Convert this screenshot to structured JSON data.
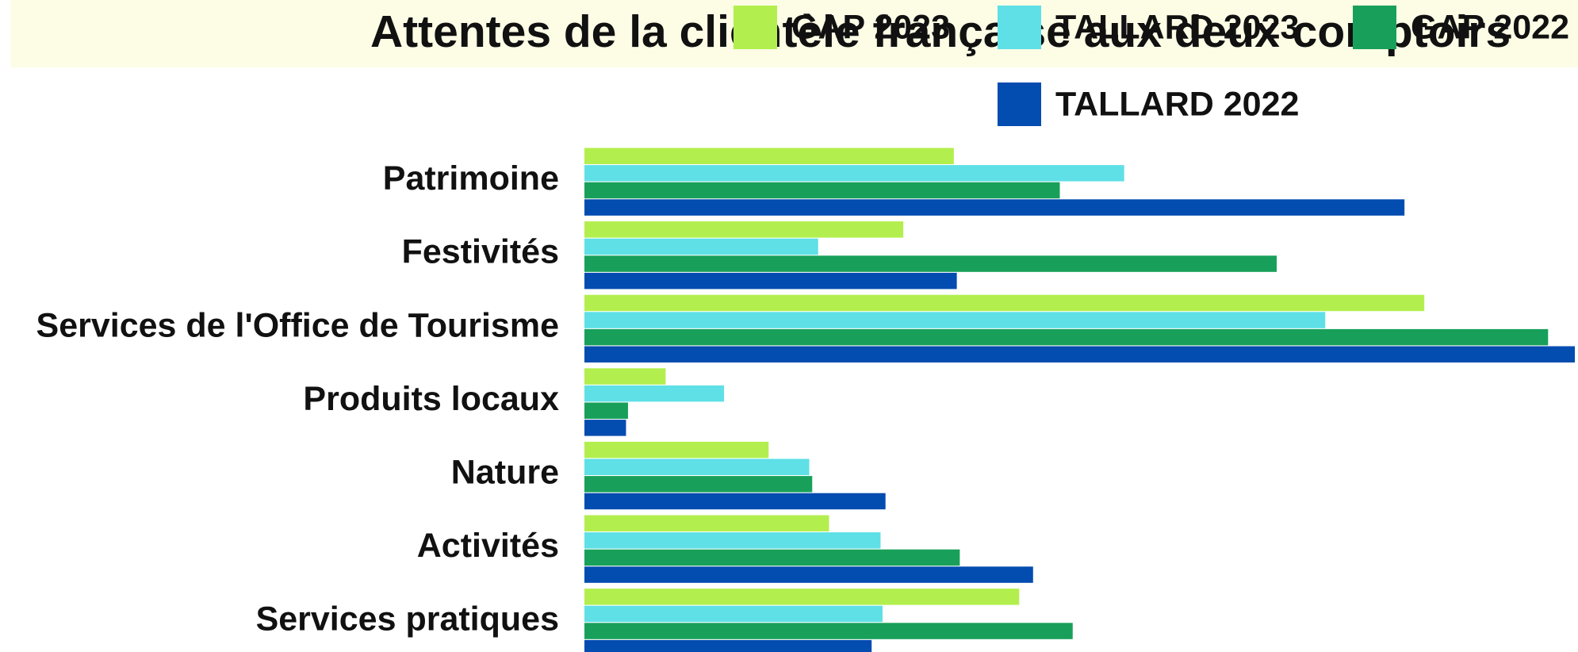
{
  "chart_data": {
    "type": "hbar",
    "title": "Attentes de la clientèle française aux deux comptoirs",
    "categories": [
      "Patrimoine",
      "Festivités",
      "Services de l'Office de Tourisme",
      "Produits locaux",
      "Nature",
      "Activités",
      "Services pratiques"
    ],
    "series": [
      {
        "name": "GAP 2023",
        "color": "#b2ef4e",
        "values": [
          37.3,
          32.2,
          84.8,
          8.2,
          18.6,
          24.7,
          43.9
        ]
      },
      {
        "name": "TALLARD 2023",
        "color": "#5ee0e6",
        "values": [
          54.5,
          23.6,
          74.8,
          14.1,
          22.7,
          29.9,
          30.1
        ]
      },
      {
        "name": "GAP 2022",
        "color": "#18a05a",
        "values": [
          48.0,
          69.9,
          97.3,
          4.4,
          23.0,
          37.9,
          49.3
        ]
      },
      {
        "name": "TALLARD 2022",
        "color": "#034cb0",
        "values": [
          82.8,
          37.6,
          100,
          4.2,
          30.4,
          45.3,
          29.0
        ]
      }
    ],
    "xlim": [
      0,
      100
    ],
    "legend": "top-right"
  }
}
